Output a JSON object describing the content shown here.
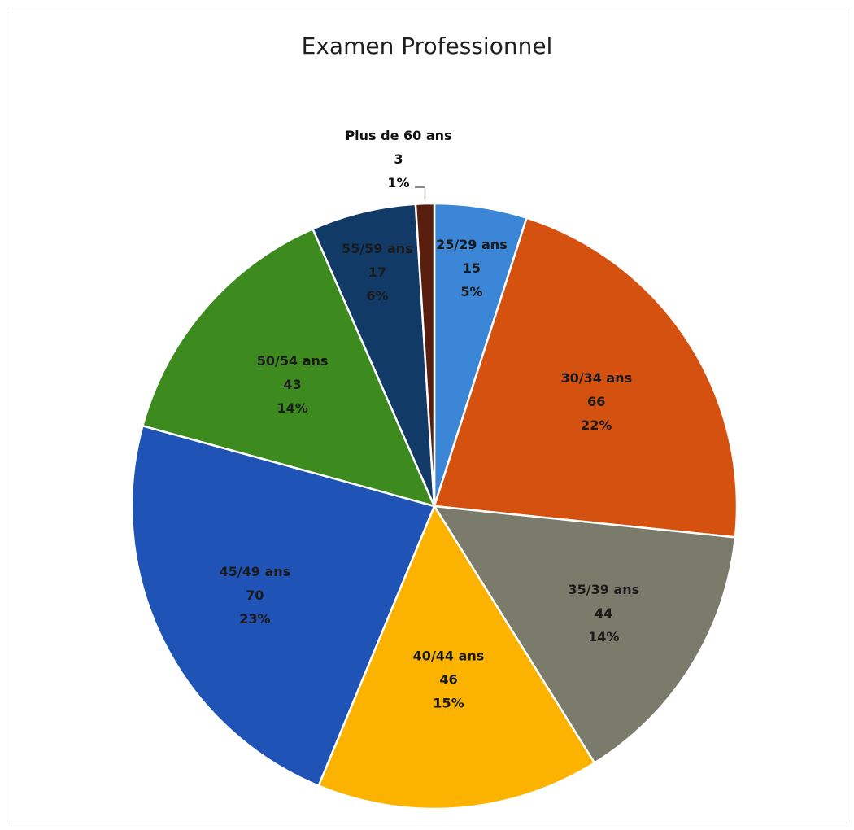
{
  "chart_data": {
    "type": "pie",
    "title": "Examen Professionnel",
    "slices": [
      {
        "name": "25/29 ans",
        "value": 15,
        "percent": "5%",
        "color": "#3b86d6",
        "label_color": "#1a1a1a"
      },
      {
        "name": "30/34 ans",
        "value": 66,
        "percent": "22%",
        "color": "#d4510f",
        "label_color": "#1a1a1a"
      },
      {
        "name": "35/39 ans",
        "value": 44,
        "percent": "14%",
        "color": "#7b7b6b",
        "label_color": "#1a1a1a"
      },
      {
        "name": "40/44 ans",
        "value": 46,
        "percent": "15%",
        "color": "#fbb300",
        "label_color": "#1a1a1a"
      },
      {
        "name": "45/49 ans",
        "value": 70,
        "percent": "23%",
        "color": "#1f53b6",
        "label_color": "#1a1a1a"
      },
      {
        "name": "50/54 ans",
        "value": 43,
        "percent": "14%",
        "color": "#3d8a1e",
        "label_color": "#1a1a1a"
      },
      {
        "name": "55/59 ans",
        "value": 17,
        "percent": "6%",
        "color": "#123a66",
        "label_color": "#1a1a1a"
      },
      {
        "name": "Plus de 60 ans",
        "value": 3,
        "percent": "1%",
        "color": "#5a1e0e",
        "label_color": "#111111"
      }
    ]
  }
}
